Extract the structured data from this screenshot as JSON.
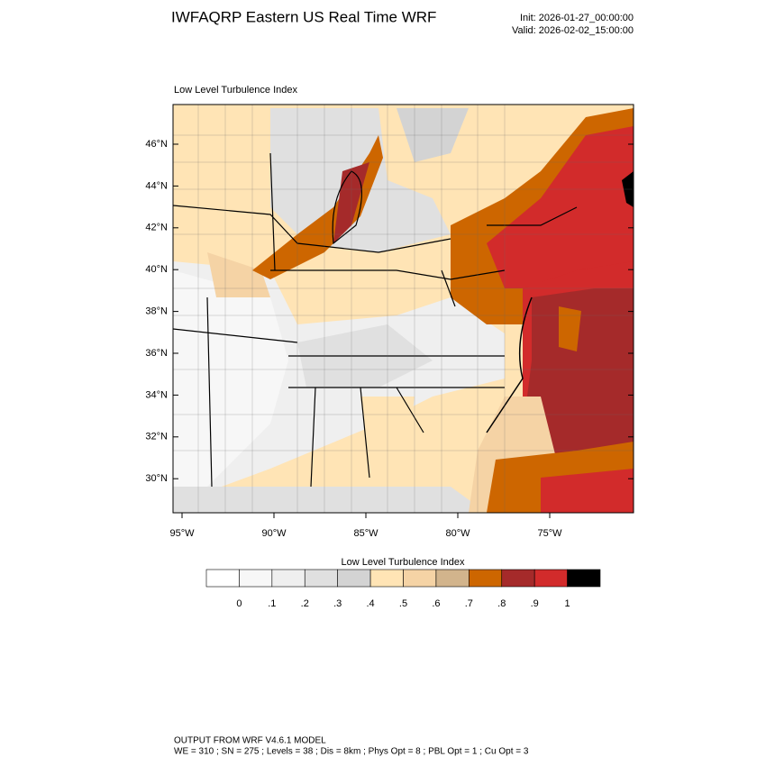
{
  "header": {
    "title": "IWFAQRP Eastern US Real Time WRF",
    "init": "Init: 2026-01-27_00:00:00",
    "valid": "Valid: 2026-02-02_15:00:00"
  },
  "map": {
    "title": "Low Level Turbulence Index",
    "lat_labels": [
      "46°N",
      "44°N",
      "42°N",
      "40°N",
      "38°N",
      "36°N",
      "34°N",
      "32°N",
      "30°N"
    ],
    "lon_labels": [
      "95°W",
      "90°W",
      "85°W",
      "80°W",
      "75°W"
    ]
  },
  "legend": {
    "title": "Low Level Turbulence Index",
    "colors": [
      "#ffffff",
      "#f7f7f7",
      "#efefef",
      "#e0e0e0",
      "#d3d3d3",
      "#ffe4b5",
      "#f5d3a5",
      "#d2b48c",
      "#cd6600",
      "#a52a2a",
      "#d22b2b",
      "#000000"
    ],
    "labels": [
      "0",
      ".1",
      ".2",
      ".3",
      ".4",
      ".5",
      ".6",
      ".7",
      ".8",
      ".9",
      "1"
    ]
  },
  "footer": {
    "lines": [
      "OUTPUT FROM WRF V4.6.1 MODEL",
      "WE = 310 ; SN = 275 ; Levels = 38 ; Dis = 8km ; Phys Opt = 8 ; PBL Opt = 1 ; Cu Opt = 3"
    ]
  }
}
